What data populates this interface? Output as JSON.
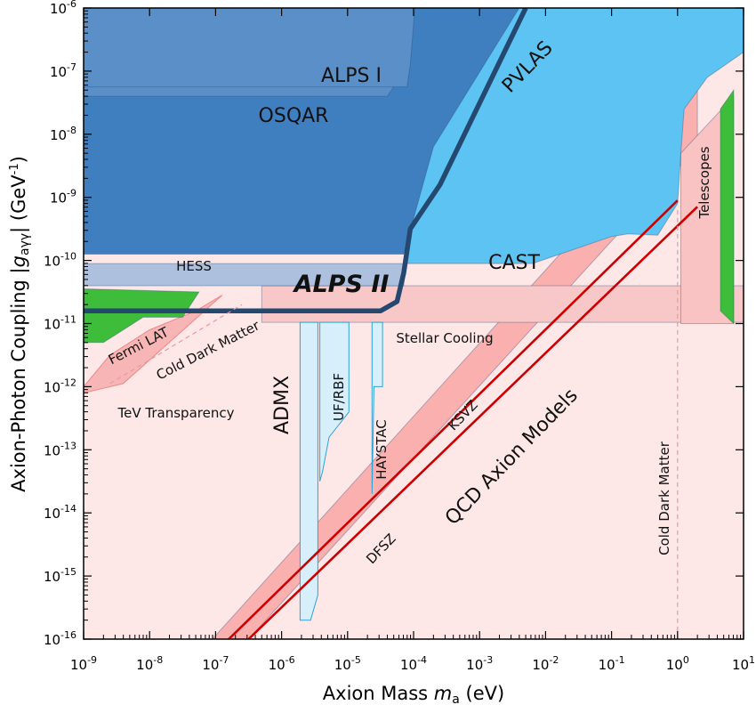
{
  "chart_data": {
    "type": "area",
    "xlabel": "Axion Mass m_a (eV)",
    "ylabel": "Axion-Photon Coupling |g_aγγ| (GeV^-1)",
    "xscale": "log",
    "yscale": "log",
    "xlim_exp": [
      -9,
      1
    ],
    "ylim_exp": [
      -16,
      -6
    ],
    "xticks_exp": [
      -9,
      -8,
      -7,
      -6,
      -5,
      -4,
      -3,
      -2,
      -1,
      0,
      1
    ],
    "yticks_exp": [
      -16,
      -15,
      -14,
      -13,
      -12,
      -11,
      -10,
      -9,
      -8,
      -7,
      -6
    ],
    "regions": [
      {
        "name": "ALPS I",
        "label": "ALPS I",
        "color": "#5b8fc7",
        "points": [
          [
            -9,
            -6
          ],
          [
            -3.98,
            -6
          ],
          [
            -4.05,
            -6.9
          ],
          [
            -4.1,
            -7.25
          ],
          [
            -9,
            -7.25
          ]
        ]
      },
      {
        "name": "OSQAR",
        "label": "OSQAR",
        "color": "#5b8fc7",
        "points": [
          [
            -9,
            -6
          ],
          [
            -4.25,
            -6
          ],
          [
            -4.3,
            -7.25
          ],
          [
            -4.4,
            -7.4
          ],
          [
            -9,
            -7.4
          ]
        ]
      },
      {
        "name": "PVLAS",
        "label": "PVLAS",
        "color": "#3f7fc0",
        "points": [
          [
            -9,
            -6
          ],
          [
            -2.4,
            -6
          ],
          [
            -3.7,
            -8.2
          ],
          [
            -4.15,
            -9.9
          ],
          [
            -9,
            -9.9
          ]
        ]
      },
      {
        "name": "CAST",
        "label": "CAST",
        "color": "#5cc3f3",
        "points": [
          [
            -4.4,
            -6
          ],
          [
            1,
            -6
          ],
          [
            1,
            -6.7
          ],
          [
            0.45,
            -7.1
          ],
          [
            0.1,
            -7.6
          ],
          [
            0.05,
            -8.3
          ],
          [
            0.0,
            -9.1
          ],
          [
            -0.3,
            -9.6
          ],
          [
            -0.75,
            -9.58
          ],
          [
            -1,
            -9.62
          ],
          [
            -2.2,
            -10.05
          ],
          [
            -4.1,
            -10.05
          ]
        ]
      },
      {
        "name": "HESS",
        "label": "HESS",
        "color": "#9fb9dc",
        "points": [
          [
            -9,
            -10.05
          ],
          [
            -4.12,
            -10.05
          ],
          [
            -4.15,
            -10.4
          ],
          [
            -9,
            -10.4
          ]
        ]
      },
      {
        "name": "Fermi LAT",
        "label": "Fermi LAT",
        "color": "#3dbd3a",
        "points": [
          [
            -9,
            -10.45
          ],
          [
            -7.25,
            -10.5
          ],
          [
            -7.5,
            -10.9
          ],
          [
            -8.1,
            -10.9
          ],
          [
            -8.7,
            -11.3
          ],
          [
            -9,
            -11.3
          ]
        ]
      },
      {
        "name": "TeV Transparency",
        "label": "TeV Transparency",
        "color": "#f7b5b5",
        "points": [
          [
            -9,
            -12
          ],
          [
            -8.6,
            -11.5
          ],
          [
            -8,
            -11.1
          ],
          [
            -7.3,
            -10.8
          ],
          [
            -6.9,
            -10.55
          ],
          [
            -8.4,
            -11.95
          ],
          [
            -9,
            -12.1
          ]
        ]
      },
      {
        "name": "Stellar Cooling",
        "label": "Stellar Cooling",
        "color": "#f8c7c7",
        "points": [
          [
            -6.3,
            -10.4
          ],
          [
            1,
            -10.4
          ],
          [
            1,
            -10.98
          ],
          [
            -6.3,
            -10.98
          ]
        ]
      },
      {
        "name": "Telescopes",
        "label": "Telescopes",
        "color": "#f9c3c3",
        "points": [
          [
            0.05,
            -8.3
          ],
          [
            0.85,
            -7.4
          ],
          [
            0.85,
            -11
          ],
          [
            0.05,
            -11
          ]
        ]
      },
      {
        "name": "Telescopes-green",
        "label": "",
        "color": "#3dbd3a",
        "points": [
          [
            0.65,
            -7.6
          ],
          [
            0.85,
            -7.3
          ],
          [
            0.85,
            -11
          ],
          [
            0.75,
            -10.9
          ],
          [
            0.65,
            -10.8
          ]
        ]
      },
      {
        "name": "QCD Axion band",
        "label": "QCD Axion Models",
        "color": "#fbb0b0",
        "points": [
          [
            -7.05,
            -16
          ],
          [
            -6.5,
            -16
          ],
          [
            0.3,
            -8.2
          ],
          [
            0.3,
            -7.2
          ],
          [
            -0.4,
            -8.3
          ]
        ]
      },
      {
        "name": "ADMX",
        "label": "ADMX",
        "color": "#d6effb",
        "points": [
          [
            -5.72,
            -10.98
          ],
          [
            -5.45,
            -10.98
          ],
          [
            -5.45,
            -15.3
          ],
          [
            -5.56,
            -15.7
          ],
          [
            -5.72,
            -15.7
          ]
        ]
      },
      {
        "name": "UF/RBF",
        "label": "UF/RBF",
        "color": "#d6effb",
        "points": [
          [
            -5.42,
            -10.98
          ],
          [
            -4.98,
            -10.98
          ],
          [
            -4.98,
            -12.4
          ],
          [
            -5.28,
            -12.8
          ],
          [
            -5.38,
            -13.35
          ],
          [
            -5.42,
            -13.5
          ]
        ]
      },
      {
        "name": "HAYSTAC",
        "label": "HAYSTAC",
        "color": "#d6effb",
        "points": [
          [
            -4.63,
            -10.98
          ],
          [
            -4.47,
            -10.98
          ],
          [
            -4.47,
            -12.0
          ],
          [
            -4.6,
            -12.0
          ],
          [
            -4.63,
            -13.7
          ]
        ]
      }
    ],
    "lines": [
      {
        "name": "ALPS II",
        "label": "ALPS II",
        "color": "#24486f",
        "points": [
          [
            -9,
            -10.8
          ],
          [
            -4.5,
            -10.8
          ],
          [
            -4.25,
            -10.65
          ],
          [
            -4.15,
            -10.2
          ],
          [
            -4.05,
            -9.5
          ],
          [
            -3.6,
            -8.8
          ],
          [
            -2.3,
            -6
          ]
        ]
      },
      {
        "name": "KSVZ",
        "label": "KSVZ",
        "color": "#cc0000",
        "points": [
          [
            -6.8,
            -16
          ],
          [
            0.0,
            -9.05
          ]
        ]
      },
      {
        "name": "DFSZ",
        "label": "DFSZ",
        "color": "#cc0000",
        "points": [
          [
            -6.5,
            -16
          ],
          [
            0.3,
            -9.15
          ]
        ]
      },
      {
        "name": "Fermi-Cold Dark Matter",
        "label": "Cold Dark Matter",
        "color": "#e89aa0",
        "dashed": true,
        "points": [
          [
            -8.6,
            -11.95
          ],
          [
            -6.6,
            -10.7
          ]
        ]
      },
      {
        "name": "Cold Dark Matter vertical",
        "label": "Cold Dark Matter",
        "color": "#e89aa0",
        "dashed": true,
        "points": [
          [
            0,
            -9.2
          ],
          [
            0,
            -16
          ]
        ]
      }
    ],
    "annotations": [
      {
        "text": "ALPS I"
      },
      {
        "text": "PVLAS"
      },
      {
        "text": "OSQAR"
      },
      {
        "text": "HESS"
      },
      {
        "text": "ALPS II"
      },
      {
        "text": "CAST"
      },
      {
        "text": "Telescopes"
      },
      {
        "text": "Fermi LAT"
      },
      {
        "text": "Cold Dark Matter"
      },
      {
        "text": "Stellar Cooling"
      },
      {
        "text": "TeV Transparency"
      },
      {
        "text": "ADMX"
      },
      {
        "text": "UF/RBF"
      },
      {
        "text": "HAYSTAC"
      },
      {
        "text": "KSVZ"
      },
      {
        "text": "QCD Axion Models"
      },
      {
        "text": "DFSZ"
      },
      {
        "text": "Cold Dark Matter"
      }
    ]
  }
}
